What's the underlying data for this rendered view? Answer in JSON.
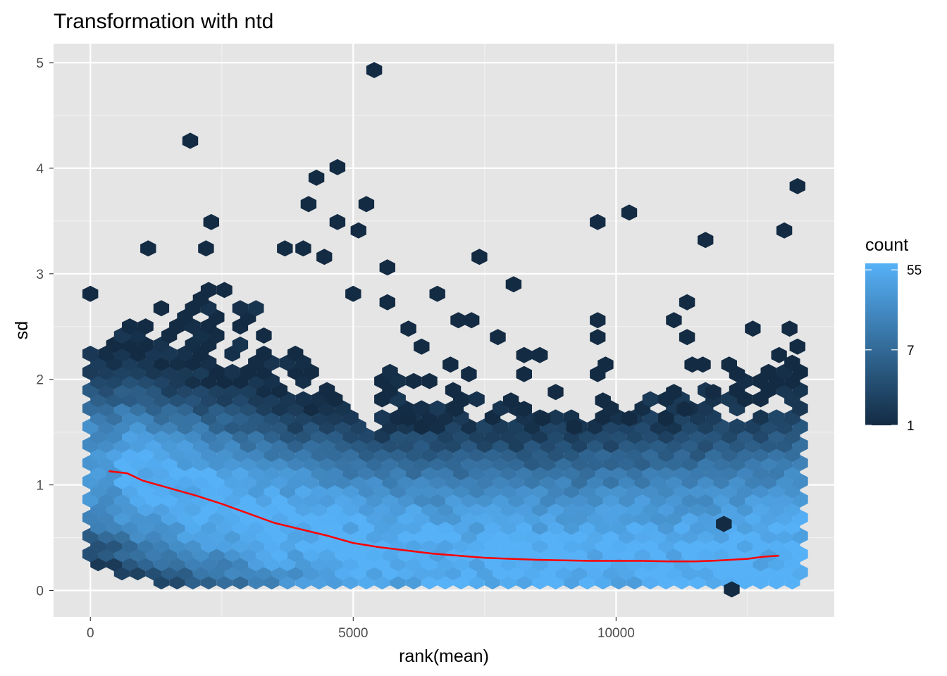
{
  "chart_data": {
    "type": "heatmap",
    "subtype": "hexbin",
    "title": "Transformation with ntd",
    "xlabel": "rank(mean)",
    "ylabel": "sd",
    "xlim": [
      -700,
      14150
    ],
    "ylim": [
      -0.25,
      5.18
    ],
    "x_ticks": [
      0,
      5000,
      10000
    ],
    "x_tick_labels": [
      "0",
      "5000",
      "10000"
    ],
    "y_ticks": [
      0,
      1,
      2,
      3,
      4,
      5
    ],
    "y_tick_labels": [
      "0",
      "1",
      "2",
      "3",
      "4",
      "5"
    ],
    "grid": true,
    "background": "#e5e5e5",
    "legend": {
      "title": "count",
      "position": "right",
      "scale": "log",
      "breaks": [
        1,
        7,
        55
      ],
      "break_labels": [
        "1",
        "7",
        "55"
      ],
      "range": [
        1,
        65
      ],
      "low_color": "#132b43",
      "high_color": "#56b1f7"
    },
    "trend_line": {
      "color": "#ff0000",
      "x": [
        350,
        700,
        1000,
        1500,
        2000,
        2500,
        3000,
        3500,
        4000,
        4500,
        5000,
        5500,
        6000,
        6500,
        7000,
        7500,
        8000,
        8500,
        9000,
        9500,
        10000,
        10500,
        11000,
        11500,
        12000,
        12500,
        12800,
        13100
      ],
      "y": [
        1.13,
        1.11,
        1.04,
        0.97,
        0.9,
        0.82,
        0.73,
        0.64,
        0.58,
        0.52,
        0.45,
        0.41,
        0.38,
        0.35,
        0.33,
        0.31,
        0.3,
        0.29,
        0.285,
        0.28,
        0.28,
        0.28,
        0.275,
        0.275,
        0.285,
        0.3,
        0.32,
        0.33
      ]
    },
    "outliers": [
      {
        "x": 5400,
        "y": 4.93
      },
      {
        "x": 1900,
        "y": 4.26
      },
      {
        "x": 4700,
        "y": 4.01
      },
      {
        "x": 4300,
        "y": 3.91
      },
      {
        "x": 13450,
        "y": 3.83
      },
      {
        "x": 4150,
        "y": 3.66
      },
      {
        "x": 5250,
        "y": 3.66
      },
      {
        "x": 10250,
        "y": 3.58
      },
      {
        "x": 2300,
        "y": 3.49
      },
      {
        "x": 4700,
        "y": 3.49
      },
      {
        "x": 9650,
        "y": 3.49
      },
      {
        "x": 13200,
        "y": 3.41
      },
      {
        "x": 5100,
        "y": 3.41
      },
      {
        "x": 11700,
        "y": 3.32
      },
      {
        "x": 1100,
        "y": 3.24
      },
      {
        "x": 2200,
        "y": 3.24
      },
      {
        "x": 3700,
        "y": 3.24
      },
      {
        "x": 4050,
        "y": 3.24
      },
      {
        "x": 7400,
        "y": 3.16
      },
      {
        "x": 4450,
        "y": 3.16
      },
      {
        "x": 5650,
        "y": 3.06
      },
      {
        "x": 8050,
        "y": 2.9
      },
      {
        "x": 6600,
        "y": 2.81
      },
      {
        "x": 0,
        "y": 2.81
      },
      {
        "x": 5000,
        "y": 2.81
      },
      {
        "x": 11350,
        "y": 2.73
      },
      {
        "x": 5650,
        "y": 2.73
      },
      {
        "x": 9650,
        "y": 2.56
      },
      {
        "x": 11100,
        "y": 2.56
      },
      {
        "x": 7000,
        "y": 2.56
      },
      {
        "x": 7250,
        "y": 2.56
      },
      {
        "x": 13300,
        "y": 2.48
      },
      {
        "x": 12600,
        "y": 2.48
      },
      {
        "x": 6050,
        "y": 2.48
      },
      {
        "x": 7750,
        "y": 2.4
      },
      {
        "x": 9650,
        "y": 2.4
      },
      {
        "x": 11350,
        "y": 2.4
      },
      {
        "x": 6300,
        "y": 2.31
      },
      {
        "x": 13450,
        "y": 2.31
      },
      {
        "x": 8250,
        "y": 2.23
      },
      {
        "x": 8550,
        "y": 2.23
      },
      {
        "x": 13100,
        "y": 2.23
      },
      {
        "x": 6850,
        "y": 2.14
      },
      {
        "x": 9800,
        "y": 2.14
      },
      {
        "x": 11450,
        "y": 2.14
      },
      {
        "x": 11650,
        "y": 2.14
      },
      {
        "x": 12150,
        "y": 2.14
      },
      {
        "x": 7200,
        "y": 2.05
      },
      {
        "x": 8250,
        "y": 2.05
      },
      {
        "x": 9650,
        "y": 2.05
      },
      {
        "x": 12300,
        "y": 2.05
      },
      {
        "x": 11100,
        "y": 1.88
      },
      {
        "x": 11850,
        "y": 1.88
      },
      {
        "x": 8850,
        "y": 1.88
      },
      {
        "x": 7050,
        "y": 1.8
      },
      {
        "x": 8000,
        "y": 1.8
      },
      {
        "x": 9750,
        "y": 1.8
      },
      {
        "x": 11300,
        "y": 1.72
      },
      {
        "x": 6950,
        "y": 1.72
      },
      {
        "x": 8250,
        "y": 1.72
      },
      {
        "x": 10250,
        "y": 1.63
      },
      {
        "x": 10950,
        "y": 1.63
      },
      {
        "x": 8600,
        "y": 1.63
      },
      {
        "x": 6050,
        "y": 1.63
      },
      {
        "x": 6300,
        "y": 1.55
      },
      {
        "x": 9200,
        "y": 1.55
      },
      {
        "x": 12050,
        "y": 0.63
      },
      {
        "x": 12200,
        "y": 0.01
      }
    ]
  }
}
